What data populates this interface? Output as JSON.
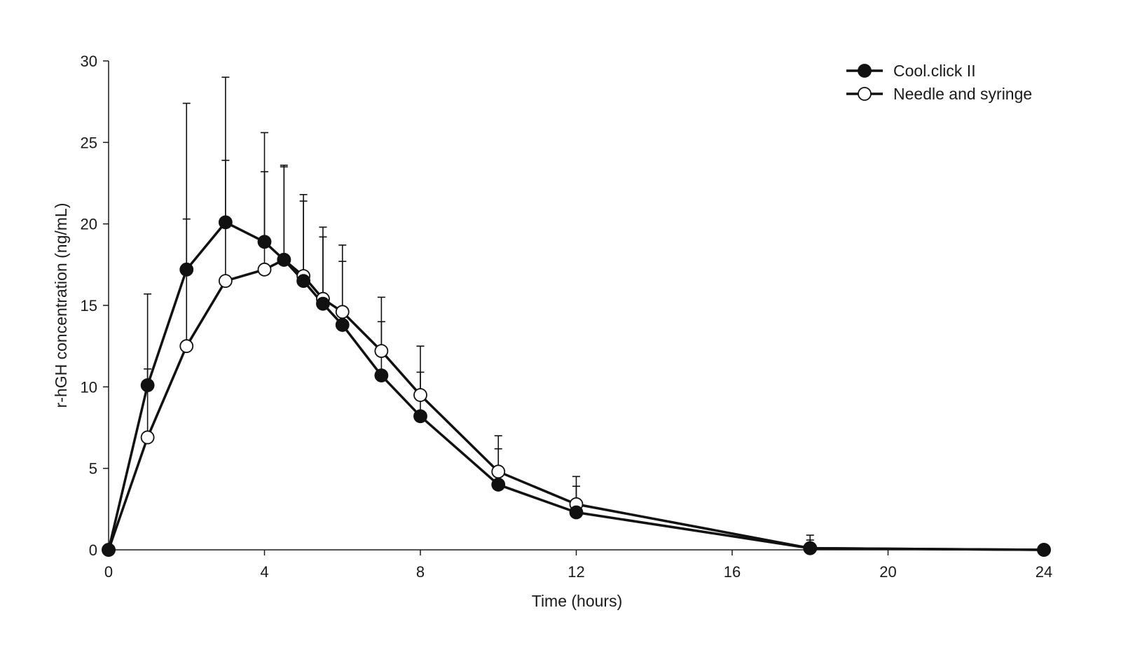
{
  "chart_data": {
    "type": "line",
    "title": "",
    "xlabel": "Time (hours)",
    "ylabel": "r-hGH concentration (ng/mL)",
    "xlim": [
      0,
      24
    ],
    "ylim": [
      0,
      30
    ],
    "xticks": [
      0,
      4,
      8,
      12,
      16,
      20,
      24
    ],
    "yticks": [
      0,
      5,
      10,
      15,
      20,
      25,
      30
    ],
    "grid": false,
    "legend_position": "top-right",
    "series": [
      {
        "name": "Cool.click II",
        "marker": "filled-circle",
        "color": "#111111",
        "x": [
          0,
          1,
          2,
          3,
          4,
          4.5,
          5,
          5.5,
          6,
          7,
          8,
          10,
          12,
          18,
          24
        ],
        "y": [
          0,
          10.1,
          17.2,
          20.1,
          18.9,
          17.8,
          16.5,
          15.1,
          13.8,
          10.7,
          8.2,
          4.0,
          2.3,
          0.1,
          0
        ],
        "error_upper": [
          0,
          15.7,
          27.4,
          29.0,
          25.6,
          23.5,
          21.4,
          19.2,
          17.7,
          14.0,
          10.9,
          6.2,
          3.9,
          0.9,
          0
        ]
      },
      {
        "name": "Needle and syringe",
        "marker": "open-circle",
        "color": "#111111",
        "x": [
          0,
          1,
          2,
          3,
          4,
          4.5,
          5,
          5.5,
          6,
          7,
          8,
          10,
          12,
          18,
          24
        ],
        "y": [
          0,
          6.9,
          12.5,
          16.5,
          17.2,
          17.8,
          16.8,
          15.4,
          14.6,
          12.2,
          9.5,
          4.8,
          2.8,
          0.1,
          0
        ],
        "error_upper": [
          0,
          11.1,
          20.3,
          23.9,
          23.2,
          23.6,
          21.8,
          19.8,
          18.7,
          15.5,
          12.5,
          7.0,
          4.5,
          0.6,
          0
        ]
      }
    ]
  }
}
